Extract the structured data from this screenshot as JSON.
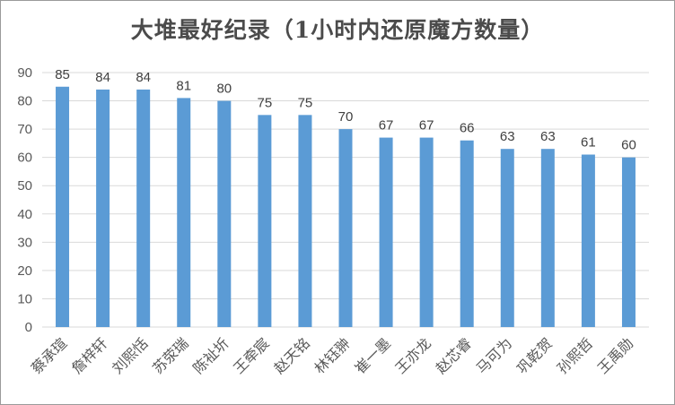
{
  "chart_data": {
    "type": "bar",
    "title": "大堆最好纪录（1小时内还原魔方数量）",
    "xlabel": "",
    "ylabel": "",
    "categories": [
      "蔡承瑄",
      "詹梓轩",
      "刘熙恬",
      "苏荥瑞",
      "陈祉圻",
      "王牵宸",
      "赵天铭",
      "林钰翀",
      "崔一墨",
      "王亦龙",
      "赵芯睿",
      "马可为",
      "巩乾贺",
      "孙熙哲",
      "王禹勋"
    ],
    "values": [
      85,
      84,
      84,
      81,
      80,
      75,
      75,
      70,
      67,
      67,
      66,
      63,
      63,
      61,
      60
    ],
    "ylim": [
      0,
      90
    ],
    "yticks": [
      0,
      10,
      20,
      30,
      40,
      50,
      60,
      70,
      80,
      90
    ],
    "grid": true,
    "legend": "none",
    "bar_color": "#5b9bd5",
    "grid_color": "#d9d9d9"
  }
}
